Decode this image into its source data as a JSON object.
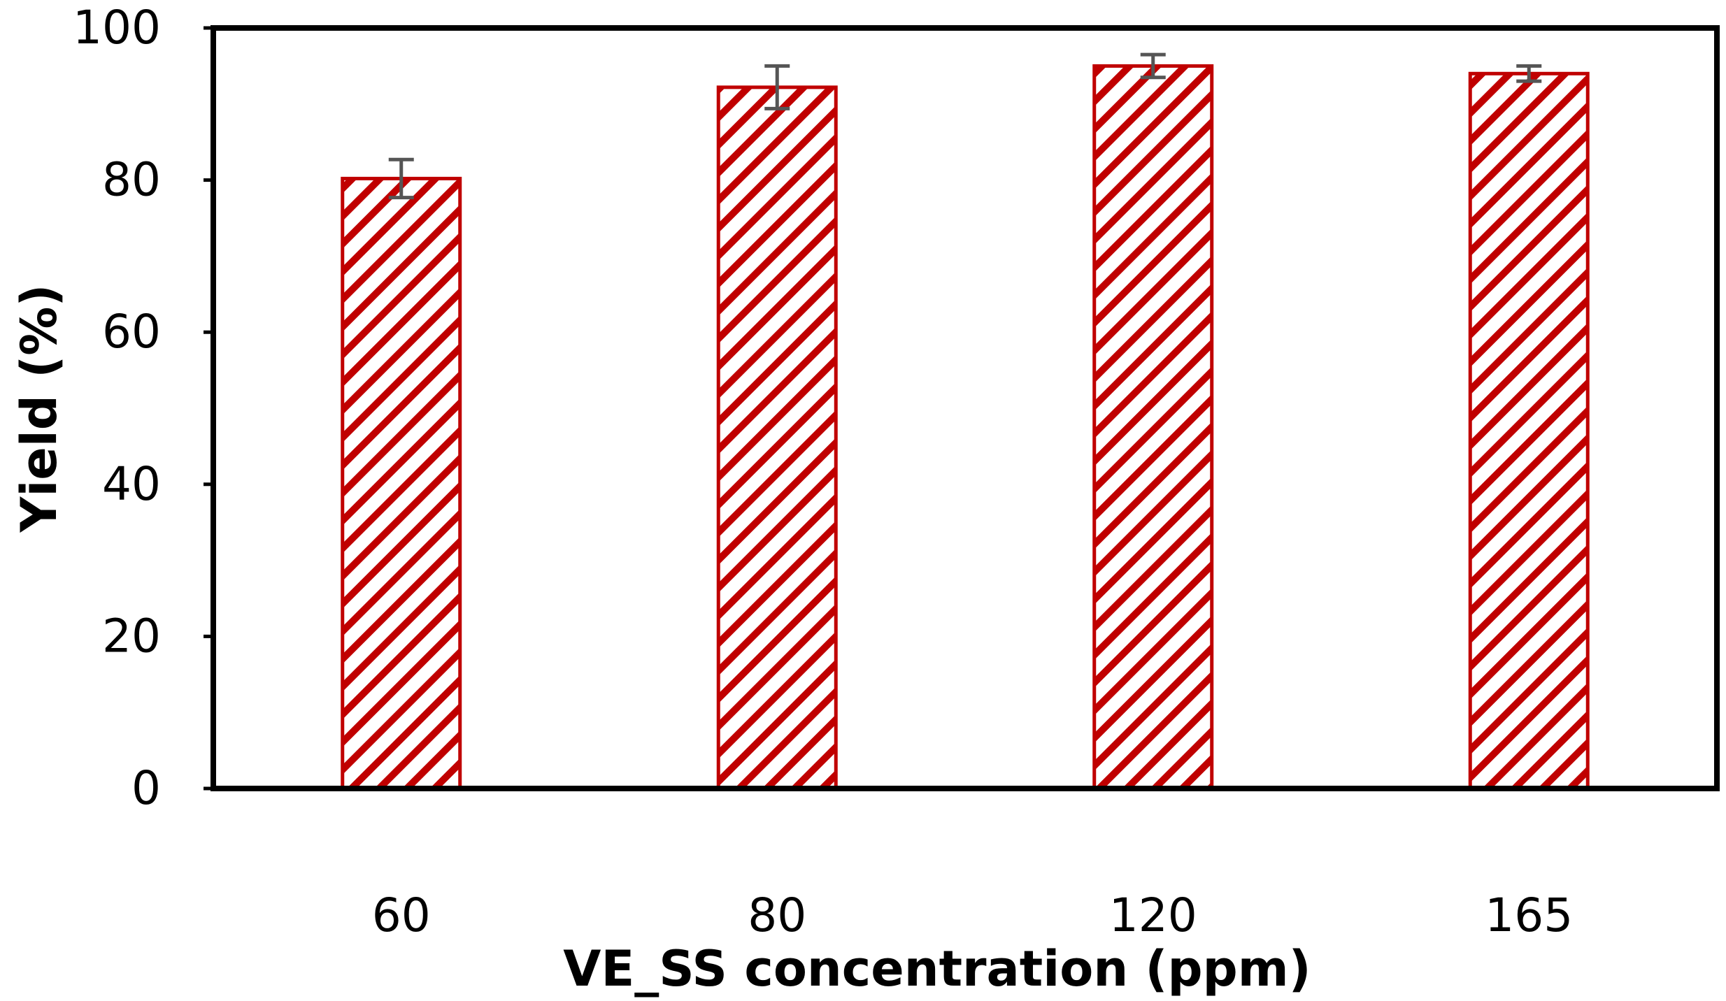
{
  "chart_data": {
    "type": "bar",
    "title": "",
    "xlabel": "VE_SS concentration (ppm)",
    "ylabel": "Yield (%)",
    "categories": [
      "60",
      "80",
      "120",
      "165"
    ],
    "values": [
      80.2,
      92.2,
      95.0,
      94.0
    ],
    "errors": [
      2.5,
      2.8,
      1.5,
      1.0
    ],
    "ylim": [
      0,
      100
    ],
    "yticks": [
      0,
      20,
      40,
      60,
      80,
      100
    ],
    "ytick_labels": [
      "0",
      "20",
      "40",
      "60",
      "80",
      "100"
    ],
    "grid": false,
    "legend": "none",
    "colors": {
      "bar_stroke": "#c00000",
      "bar_hatch": "#c00000",
      "bar_fill": "#ffffff",
      "error_bar": "#555555",
      "frame": "#000000"
    }
  }
}
